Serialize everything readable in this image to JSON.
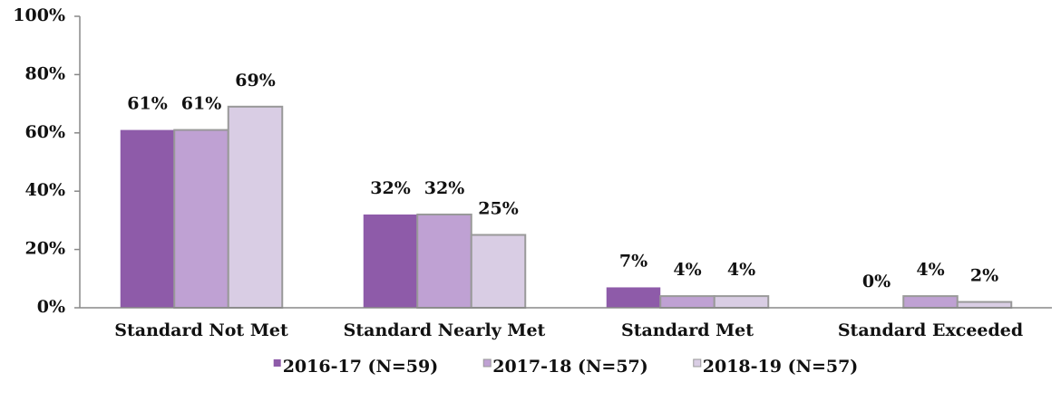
{
  "chart_data": {
    "type": "bar",
    "categories": [
      "Standard Not Met",
      "Standard Nearly Met",
      "Standard Met",
      "Standard Exceeded"
    ],
    "series": [
      {
        "name": "2016-17 (N=59)",
        "color": "#8e5ba9",
        "values": [
          61,
          32,
          7,
          0
        ],
        "value_labels": [
          "61%",
          "32%",
          "7%",
          "0%"
        ]
      },
      {
        "name": "2017-18 (N=57)",
        "color": "#bfa1d3",
        "values": [
          61,
          32,
          4,
          4
        ],
        "value_labels": [
          "61%",
          "32%",
          "4%",
          "4%"
        ]
      },
      {
        "name": "2018-19 (N=57)",
        "color": "#d9cde4",
        "values": [
          69,
          25,
          4,
          2
        ],
        "value_labels": [
          "69%",
          "25%",
          "4%",
          "2%"
        ]
      }
    ],
    "ylim": [
      0,
      100
    ],
    "yticks": [
      {
        "value": 0,
        "label": "0%"
      },
      {
        "value": 20,
        "label": "20%"
      },
      {
        "value": 40,
        "label": "40%"
      },
      {
        "value": 60,
        "label": "60%"
      },
      {
        "value": 80,
        "label": "80%"
      },
      {
        "value": 100,
        "label": "100%"
      }
    ],
    "legend": "bottom"
  }
}
